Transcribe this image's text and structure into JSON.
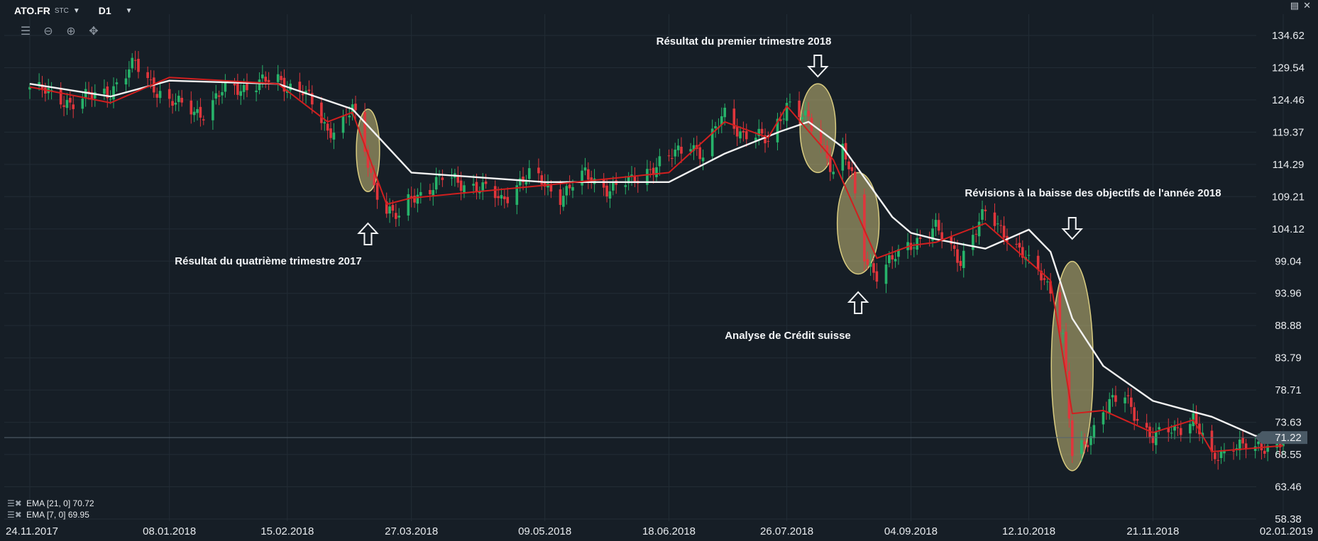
{
  "header": {
    "symbol": "ATO.FR",
    "symbol_type": "STC",
    "timeframe": "D1",
    "icons": [
      "chart-type-icon",
      "zoom-out-icon",
      "zoom-in-icon",
      "crosshair-move-icon"
    ]
  },
  "window_controls": [
    "minimize-icon",
    "close-icon"
  ],
  "legend": [
    {
      "label": "EMA [21, 0]",
      "value": "70.72",
      "color": "#f2f2f2"
    },
    {
      "label": "EMA [7, 0]",
      "value": "69.95",
      "color": "#d11f1f"
    }
  ],
  "colors": {
    "background": "#161e26",
    "up_candle": "#27b36a",
    "down_candle": "#e0363c",
    "ema21": "#f2f2f2",
    "ema7": "#d11f1f",
    "highlight": "#d9cc80",
    "current_price_box": "#4a5a66"
  },
  "chart_data": {
    "type": "candlestick",
    "y_ticks": [
      "134.62",
      "129.54",
      "124.46",
      "119.37",
      "114.29",
      "109.21",
      "104.12",
      "99.04",
      "93.96",
      "88.88",
      "83.79",
      "78.71",
      "73.63",
      "68.55",
      "63.46",
      "58.38"
    ],
    "ylim": [
      58.38,
      134.62
    ],
    "x_ticks": [
      "24.11.2017",
      "08.01.2018",
      "15.02.2018",
      "27.03.2018",
      "09.05.2018",
      "18.06.2018",
      "26.07.2018",
      "04.09.2018",
      "12.10.2018",
      "21.11.2018",
      "02.01.2019"
    ],
    "current_price": "71.22",
    "grid": true,
    "close_path": [
      [
        "24.11.2017",
        126.5
      ],
      [
        "08.12.2017",
        124.0
      ],
      [
        "20.12.2017",
        126.0
      ],
      [
        "28.12.2017",
        130.0
      ],
      [
        "08.01.2018",
        124.0
      ],
      [
        "19.01.2018",
        122.5
      ],
      [
        "26.01.2018",
        126.0
      ],
      [
        "05.02.2018",
        127.0
      ],
      [
        "12.02.2018",
        127.5
      ],
      [
        "20.02.2018",
        126.0
      ],
      [
        "28.02.2018",
        119.5
      ],
      [
        "05.03.2018",
        121.5
      ],
      [
        "08.03.2018",
        123.0
      ],
      [
        "15.03.2018",
        111.0
      ],
      [
        "19.03.2018",
        107.5
      ],
      [
        "23.03.2018",
        105.5
      ],
      [
        "27.03.2018",
        109.0
      ],
      [
        "06.04.2018",
        112.0
      ],
      [
        "17.04.2018",
        111.0
      ],
      [
        "25.04.2018",
        108.5
      ],
      [
        "30.04.2018",
        111.5
      ],
      [
        "04.05.2018",
        112.5
      ],
      [
        "09.05.2018",
        111.0
      ],
      [
        "14.05.2018",
        109.5
      ],
      [
        "22.05.2018",
        112.5
      ],
      [
        "30.05.2018",
        110.5
      ],
      [
        "06.06.2018",
        111.5
      ],
      [
        "11.06.2018",
        113.5
      ],
      [
        "18.06.2018",
        115.0
      ],
      [
        "25.06.2018",
        118.0
      ],
      [
        "29.06.2018",
        115.5
      ],
      [
        "06.07.2018",
        122.5
      ],
      [
        "12.07.2018",
        119.0
      ],
      [
        "20.07.2018",
        118.0
      ],
      [
        "24.07.2018",
        122.0
      ],
      [
        "26.07.2018",
        124.0
      ],
      [
        "30.07.2018",
        122.0
      ],
      [
        "02.08.2018",
        121.0
      ],
      [
        "06.08.2018",
        118.0
      ],
      [
        "08.08.2018",
        116.0
      ],
      [
        "10.08.2018",
        113.0
      ],
      [
        "13.08.2018",
        116.5
      ],
      [
        "16.08.2018",
        112.0
      ],
      [
        "20.08.2018",
        100.0
      ],
      [
        "24.08.2018",
        97.0
      ],
      [
        "29.08.2018",
        99.0
      ],
      [
        "04.09.2018",
        102.0
      ],
      [
        "12.09.2018",
        104.0
      ],
      [
        "20.09.2018",
        99.5
      ],
      [
        "28.09.2018",
        106.5
      ],
      [
        "04.10.2018",
        104.0
      ],
      [
        "12.10.2018",
        98.5
      ],
      [
        "16.10.2018",
        97.0
      ],
      [
        "19.10.2018",
        95.0
      ],
      [
        "23.10.2018",
        87.0
      ],
      [
        "26.10.2018",
        68.0
      ],
      [
        "30.10.2018",
        70.0
      ],
      [
        "05.11.2018",
        76.0
      ],
      [
        "12.11.2018",
        77.5
      ],
      [
        "21.11.2018",
        71.0
      ],
      [
        "28.11.2018",
        72.5
      ],
      [
        "04.12.2018",
        74.5
      ],
      [
        "10.12.2018",
        67.5
      ],
      [
        "17.12.2018",
        70.5
      ],
      [
        "24.12.2018",
        69.0
      ],
      [
        "02.01.2019",
        71.2
      ]
    ],
    "ema_21_path": [
      [
        "24.11.2017",
        127.0
      ],
      [
        "20.12.2017",
        125.0
      ],
      [
        "08.01.2018",
        127.5
      ],
      [
        "12.02.2018",
        127.0
      ],
      [
        "08.03.2018",
        123.0
      ],
      [
        "27.03.2018",
        113.0
      ],
      [
        "09.05.2018",
        111.5
      ],
      [
        "18.06.2018",
        111.5
      ],
      [
        "06.07.2018",
        116.0
      ],
      [
        "24.07.2018",
        119.5
      ],
      [
        "02.08.2018",
        121.0
      ],
      [
        "13.08.2018",
        117.0
      ],
      [
        "29.08.2018",
        106.0
      ],
      [
        "04.09.2018",
        103.5
      ],
      [
        "12.09.2018",
        102.5
      ],
      [
        "28.09.2018",
        101.0
      ],
      [
        "12.10.2018",
        104.0
      ],
      [
        "19.10.2018",
        100.5
      ],
      [
        "26.10.2018",
        90.0
      ],
      [
        "05.11.2018",
        82.5
      ],
      [
        "21.11.2018",
        77.0
      ],
      [
        "10.12.2018",
        74.5
      ],
      [
        "24.12.2018",
        71.5
      ],
      [
        "02.01.2019",
        70.72
      ]
    ],
    "ema_7_path": [
      [
        "24.11.2017",
        126.5
      ],
      [
        "20.12.2017",
        124.0
      ],
      [
        "08.01.2018",
        128.0
      ],
      [
        "12.02.2018",
        127.0
      ],
      [
        "28.02.2018",
        121.0
      ],
      [
        "08.03.2018",
        122.5
      ],
      [
        "19.03.2018",
        108.0
      ],
      [
        "27.03.2018",
        109.0
      ],
      [
        "09.05.2018",
        111.0
      ],
      [
        "18.06.2018",
        113.0
      ],
      [
        "06.07.2018",
        121.0
      ],
      [
        "20.07.2018",
        118.5
      ],
      [
        "26.07.2018",
        123.5
      ],
      [
        "10.08.2018",
        115.0
      ],
      [
        "24.08.2018",
        99.5
      ],
      [
        "04.09.2018",
        101.5
      ],
      [
        "12.09.2018",
        102.0
      ],
      [
        "28.09.2018",
        105.0
      ],
      [
        "12.10.2018",
        99.0
      ],
      [
        "19.10.2018",
        96.0
      ],
      [
        "26.10.2018",
        75.0
      ],
      [
        "05.11.2018",
        75.5
      ],
      [
        "21.11.2018",
        72.0
      ],
      [
        "04.12.2018",
        74.0
      ],
      [
        "10.12.2018",
        69.0
      ],
      [
        "02.01.2019",
        69.95
      ]
    ],
    "highlights": [
      {
        "start": "12.03.2018",
        "end": "14.03.2018",
        "ymin": 110,
        "ymax": 123
      },
      {
        "start": "02.08.2018",
        "end": "08.08.2018",
        "ymin": 113,
        "ymax": 127
      },
      {
        "start": "14.08.2018",
        "end": "22.08.2018",
        "ymin": 97,
        "ymax": 113
      },
      {
        "start": "22.10.2018",
        "end": "30.10.2018",
        "ymin": 66,
        "ymax": 99
      }
    ],
    "annotations": [
      {
        "text": "Résultat du quatrième trimestre 2017",
        "arrow": "up",
        "date": "13.03.2018"
      },
      {
        "text": "Résultat du premier trimestre 2018",
        "arrow": "down",
        "date": "05.08.2018"
      },
      {
        "text": "Analyse de Crédit suisse",
        "arrow": "up",
        "date": "18.08.2018"
      },
      {
        "text": "Révisions à la baisse des objectifs de l'année 2018",
        "arrow": "down",
        "date": "26.10.2018"
      }
    ]
  }
}
